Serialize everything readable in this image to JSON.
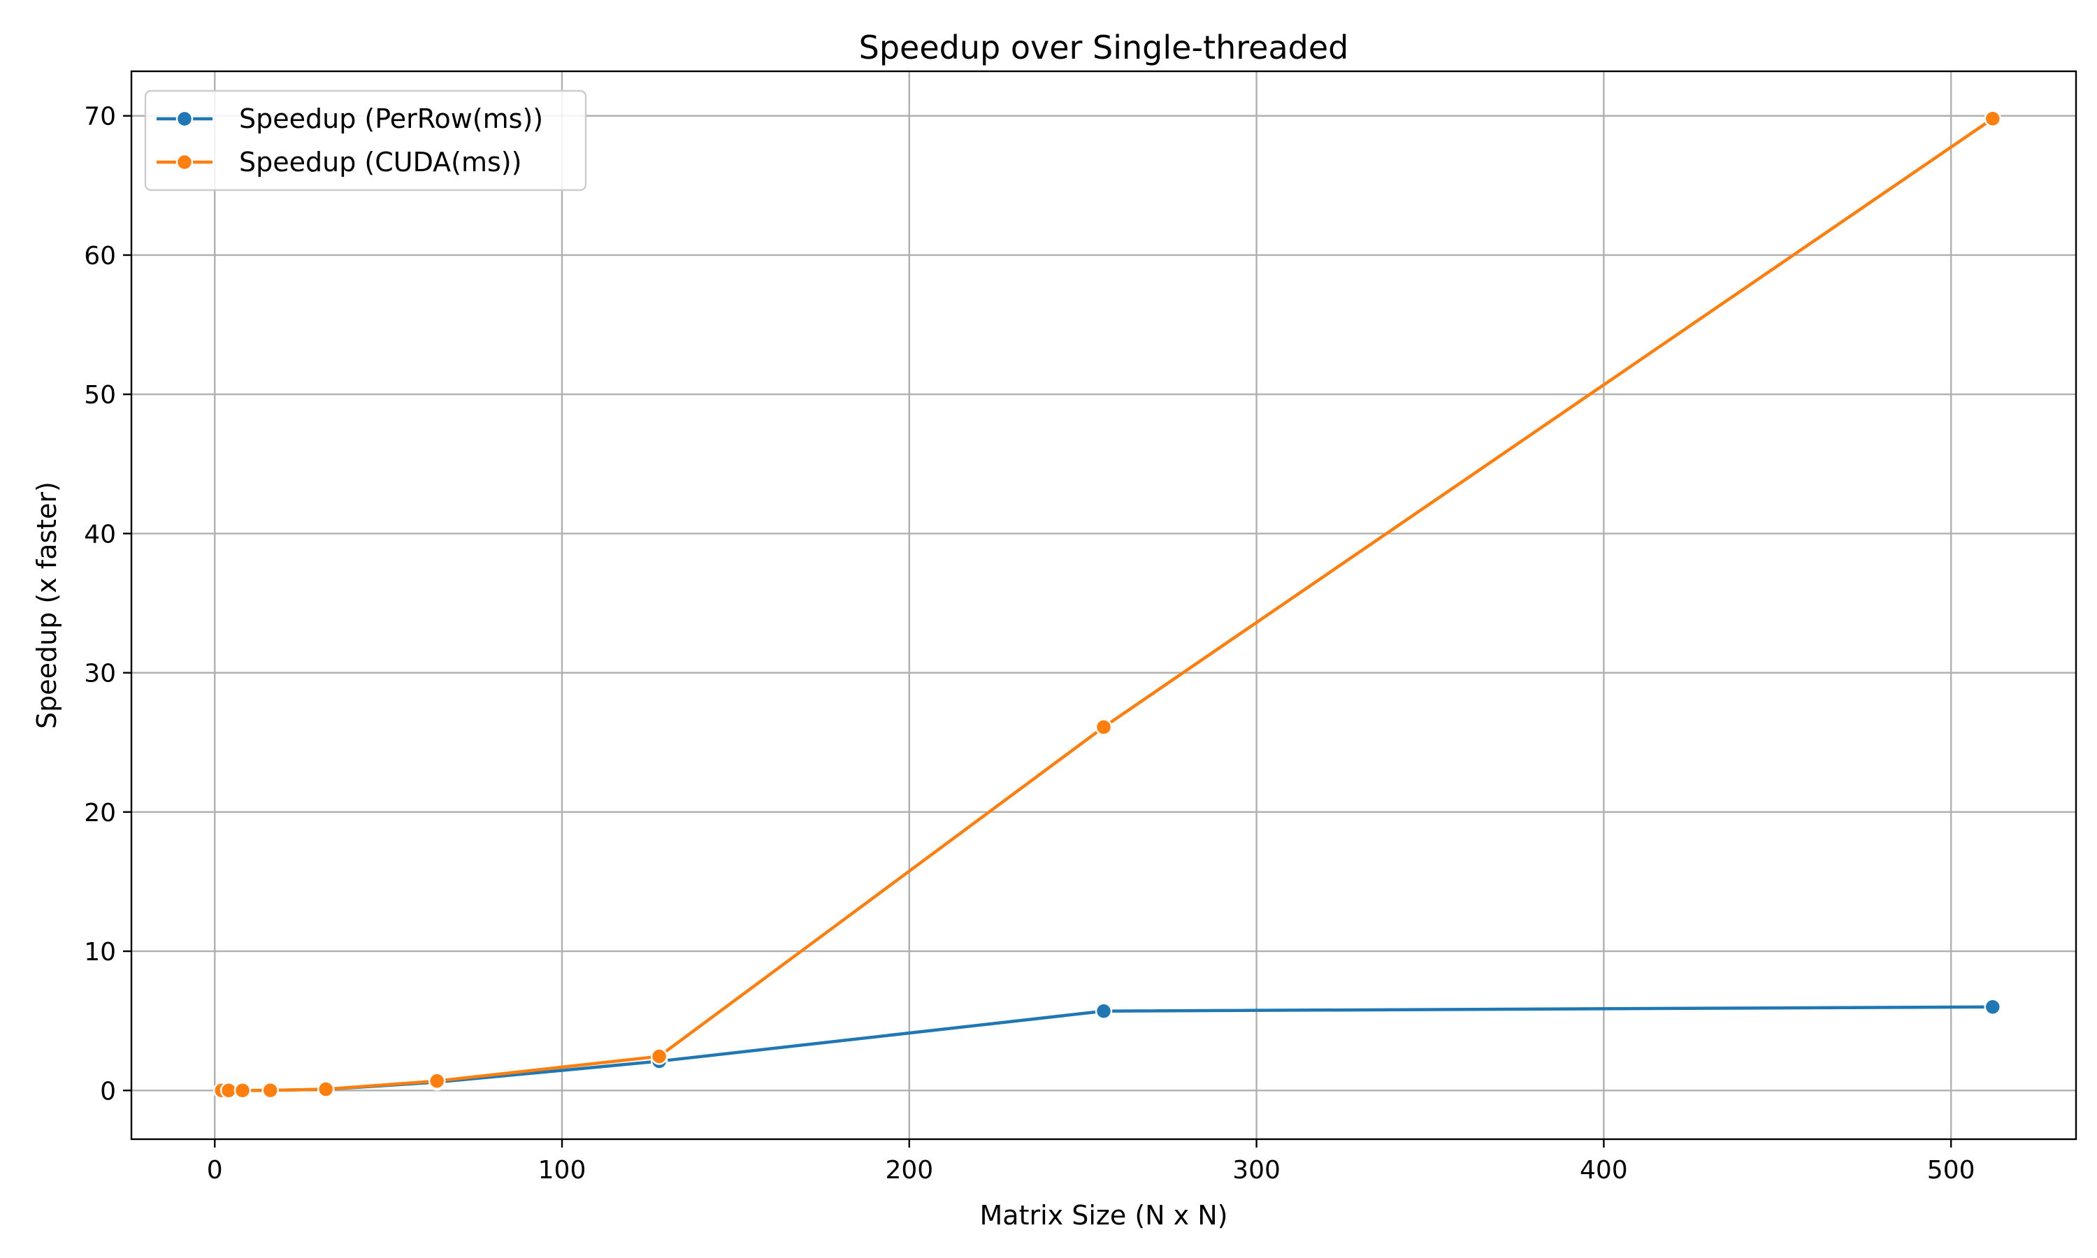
{
  "chart_data": {
    "type": "line",
    "title": "Speedup over Single-threaded",
    "xlabel": "Matrix Size (N x N)",
    "ylabel": "Speedup (x faster)",
    "xlim": [
      -24,
      536
    ],
    "ylim": [
      -3.5,
      73.2
    ],
    "xticks": [
      0,
      100,
      200,
      300,
      400,
      500
    ],
    "yticks": [
      0,
      10,
      20,
      30,
      40,
      50,
      60,
      70
    ],
    "grid": true,
    "legend_position": "upper-left",
    "x": [
      2,
      4,
      8,
      16,
      32,
      64,
      128,
      256,
      512
    ],
    "series": [
      {
        "name": "Speedup (PerRow(ms))",
        "color": "#1f77b4",
        "values": [
          0.0,
          0.0,
          0.0,
          0.01,
          0.08,
          0.6,
          2.1,
          5.7,
          6.0
        ]
      },
      {
        "name": "Speedup (CUDA(ms))",
        "color": "#ff7f0e",
        "values": [
          0.0,
          0.0,
          0.0,
          0.01,
          0.09,
          0.68,
          2.45,
          26.1,
          69.8
        ]
      }
    ]
  }
}
